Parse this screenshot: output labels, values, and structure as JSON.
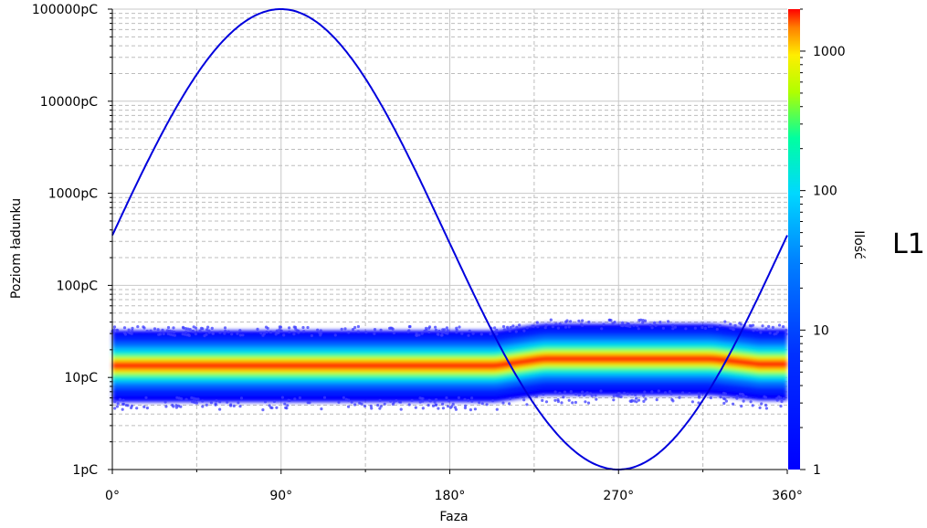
{
  "chart_data": {
    "type": "scatter",
    "title": "",
    "xlabel": "Faza",
    "ylabel": "Poziom ładunku",
    "xlim": [
      0,
      360
    ],
    "ylim": [
      1,
      100000
    ],
    "y_scale": "log",
    "x_ticks": [
      {
        "value": 0,
        "label": "0°"
      },
      {
        "value": 90,
        "label": "90°"
      },
      {
        "value": 180,
        "label": "180°"
      },
      {
        "value": 270,
        "label": "270°"
      },
      {
        "value": 360,
        "label": "360°"
      }
    ],
    "y_ticks": [
      {
        "value": 1,
        "label": "1pC"
      },
      {
        "value": 10,
        "label": "10pC"
      },
      {
        "value": 100,
        "label": "100pC"
      },
      {
        "value": 1000,
        "label": "1000pC"
      },
      {
        "value": 10000,
        "label": "10000pC"
      },
      {
        "value": 100000,
        "label": "100000pC"
      }
    ],
    "grid": true,
    "density_band": {
      "description_values": "phase-resolved partial discharge density; center level ~13pC for 0-210°, ~16pC for 225-330°",
      "center_segments": [
        {
          "phase": [
            0,
            210
          ],
          "center": 13.5,
          "min": 4.5,
          "max": 30
        },
        {
          "phase": [
            225,
            330
          ],
          "center": 16,
          "min": 5,
          "max": 35
        },
        {
          "phase": [
            340,
            360
          ],
          "center": 14,
          "min": 5,
          "max": 30
        }
      ]
    },
    "reference_sine": {
      "color": "#0000dd",
      "x_range": [
        0,
        360
      ],
      "y_at_peak": 100000,
      "y_at_trough": 1,
      "y_at_zero_phase": 350
    },
    "colorbar": {
      "label": "Ilość",
      "scale": "log",
      "range": [
        1,
        2000
      ],
      "ticks": [
        {
          "value": 1,
          "label": "1"
        },
        {
          "value": 10,
          "label": "10"
        },
        {
          "value": 100,
          "label": "100"
        },
        {
          "value": 1000,
          "label": "1000"
        }
      ],
      "colors": [
        "#0000ff",
        "#0055ff",
        "#00c8ff",
        "#00ffaa",
        "#aaff00",
        "#ffff00",
        "#ff8800",
        "#ff0000"
      ]
    },
    "channel_label": "L1"
  }
}
